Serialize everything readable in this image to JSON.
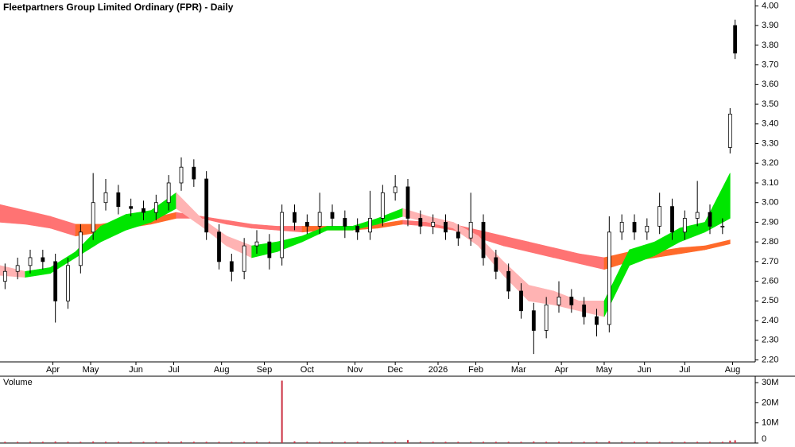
{
  "chart_data": [
    {
      "type": "candlestick",
      "title": "Fleetpartners Group Limited Ordinary (FPR) - Daily",
      "x": [
        2,
        7,
        12,
        17,
        22,
        27,
        32,
        37,
        42,
        47,
        52,
        57,
        62,
        67,
        72,
        77,
        82,
        87,
        92,
        97,
        102,
        107,
        112,
        117,
        122,
        127,
        132,
        137,
        142,
        147,
        152,
        157,
        162,
        167,
        172,
        177,
        182,
        187,
        192,
        197,
        202,
        207,
        212,
        217,
        222,
        227,
        232,
        237,
        242,
        247,
        252,
        257,
        262,
        267,
        272,
        277,
        282,
        287,
        290,
        292
      ],
      "open": [
        2.6,
        2.65,
        2.68,
        2.72,
        2.7,
        2.5,
        2.68,
        2.85,
        3.0,
        3.05,
        2.98,
        2.97,
        2.95,
        3.0,
        3.1,
        3.18,
        3.12,
        2.85,
        2.7,
        2.65,
        2.78,
        2.8,
        2.72,
        2.95,
        2.9,
        2.88,
        2.95,
        2.92,
        2.88,
        2.85,
        2.92,
        3.05,
        3.08,
        2.92,
        2.88,
        2.9,
        2.85,
        2.82,
        2.9,
        2.72,
        2.65,
        2.55,
        2.45,
        2.35,
        2.48,
        2.52,
        2.48,
        2.42,
        2.38,
        2.85,
        2.9,
        2.85,
        2.88,
        2.98,
        2.85,
        2.92,
        2.95,
        2.88,
        3.28,
        3.9
      ],
      "high": [
        2.69,
        2.72,
        2.76,
        2.76,
        2.74,
        2.72,
        2.89,
        3.15,
        3.12,
        3.09,
        3.02,
        3.01,
        3.04,
        3.14,
        3.23,
        3.22,
        3.16,
        2.89,
        2.74,
        2.82,
        2.86,
        2.84,
        2.99,
        2.99,
        2.94,
        3.05,
        2.99,
        2.96,
        2.92,
        3.06,
        3.09,
        3.14,
        3.12,
        2.96,
        2.94,
        2.94,
        2.89,
        3.05,
        2.94,
        2.76,
        2.69,
        2.59,
        2.49,
        2.52,
        2.6,
        2.56,
        2.52,
        2.46,
        2.93,
        2.94,
        2.94,
        2.92,
        3.05,
        3.02,
        2.96,
        3.11,
        2.99,
        2.92,
        3.48,
        3.93
      ],
      "low": [
        2.56,
        2.61,
        2.64,
        2.66,
        2.39,
        2.46,
        2.64,
        2.81,
        2.96,
        2.94,
        2.93,
        2.91,
        2.91,
        2.96,
        3.06,
        3.08,
        2.81,
        2.66,
        2.6,
        2.61,
        2.74,
        2.66,
        2.68,
        2.86,
        2.84,
        2.84,
        2.88,
        2.82,
        2.81,
        2.81,
        2.88,
        3.01,
        2.88,
        2.84,
        2.84,
        2.81,
        2.78,
        2.78,
        2.68,
        2.61,
        2.51,
        2.41,
        2.23,
        2.31,
        2.44,
        2.44,
        2.38,
        2.32,
        2.34,
        2.81,
        2.81,
        2.81,
        2.84,
        2.81,
        2.81,
        2.88,
        2.84,
        2.84,
        3.25,
        3.73
      ],
      "close": [
        2.65,
        2.68,
        2.72,
        2.7,
        2.5,
        2.68,
        2.85,
        3.0,
        3.05,
        2.98,
        2.97,
        2.95,
        3.0,
        3.1,
        3.18,
        3.12,
        2.85,
        2.7,
        2.65,
        2.78,
        2.8,
        2.72,
        2.95,
        2.9,
        2.88,
        2.95,
        2.92,
        2.88,
        2.85,
        2.92,
        3.05,
        3.08,
        2.92,
        2.88,
        2.9,
        2.85,
        2.82,
        2.9,
        2.72,
        2.65,
        2.55,
        2.45,
        2.35,
        2.48,
        2.52,
        2.48,
        2.42,
        2.38,
        2.85,
        2.9,
        2.85,
        2.88,
        2.98,
        2.85,
        2.92,
        2.95,
        2.88,
        2.88,
        3.45,
        3.76
      ],
      "up_color": "#ffffff",
      "down_color": "#000000",
      "bands": [
        {
          "x": [
            0,
            10,
            20,
            30,
            40,
            50,
            60,
            70,
            80,
            90,
            100,
            110,
            120,
            130,
            140,
            150,
            160,
            170,
            180,
            190,
            200,
            210,
            220,
            230,
            240,
            250,
            260,
            270,
            280,
            290
          ],
          "upper": [
            2.99,
            2.96,
            2.93,
            2.89,
            2.89,
            2.91,
            2.92,
            2.95,
            2.93,
            2.91,
            2.89,
            2.88,
            2.88,
            2.88,
            2.88,
            2.89,
            2.91,
            2.9,
            2.89,
            2.86,
            2.83,
            2.8,
            2.77,
            2.74,
            2.72,
            2.75,
            2.75,
            2.77,
            2.78,
            2.81
          ],
          "lower": [
            2.9,
            2.89,
            2.87,
            2.83,
            2.85,
            2.87,
            2.89,
            2.92,
            2.92,
            2.89,
            2.87,
            2.86,
            2.85,
            2.86,
            2.86,
            2.87,
            2.89,
            2.88,
            2.86,
            2.82,
            2.78,
            2.75,
            2.72,
            2.69,
            2.66,
            2.7,
            2.72,
            2.74,
            2.76,
            2.79
          ],
          "rising_color": "#ff6a2a",
          "falling_color": "#ff7373"
        },
        {
          "x": [
            0,
            10,
            20,
            30,
            40,
            50,
            60,
            70,
            80,
            90,
            100,
            110,
            120,
            130,
            140,
            150,
            160,
            170,
            180,
            190,
            200,
            210,
            220,
            230,
            240,
            250,
            260,
            270,
            280,
            290
          ],
          "upper": [
            2.68,
            2.65,
            2.67,
            2.75,
            2.88,
            2.94,
            2.96,
            3.05,
            2.92,
            2.83,
            2.78,
            2.8,
            2.83,
            2.88,
            2.88,
            2.92,
            2.97,
            2.93,
            2.9,
            2.83,
            2.7,
            2.58,
            2.55,
            2.5,
            2.5,
            2.76,
            2.8,
            2.87,
            2.9,
            3.15
          ],
          "lower": [
            2.63,
            2.62,
            2.64,
            2.72,
            2.8,
            2.86,
            2.9,
            2.97,
            2.88,
            2.78,
            2.72,
            2.75,
            2.8,
            2.86,
            2.86,
            2.89,
            2.93,
            2.9,
            2.87,
            2.78,
            2.63,
            2.5,
            2.48,
            2.45,
            2.42,
            2.68,
            2.73,
            2.8,
            2.85,
            2.92
          ],
          "rising_color": "#00e600",
          "falling_color": "#ffb3b3"
        }
      ],
      "xlim": [
        0,
        300
      ],
      "xticks": [
        {
          "value": 21,
          "label": "Apr"
        },
        {
          "value": 36,
          "label": "May"
        },
        {
          "value": 54,
          "label": "Jun"
        },
        {
          "value": 69,
          "label": "Jul"
        },
        {
          "value": 88,
          "label": "Aug"
        },
        {
          "value": 105,
          "label": "Sep"
        },
        {
          "value": 122,
          "label": "Oct"
        },
        {
          "value": 141,
          "label": "Nov"
        },
        {
          "value": 157,
          "label": "Dec"
        },
        {
          "value": 174,
          "label": "2026"
        },
        {
          "value": 189,
          "label": "Feb"
        },
        {
          "value": 206,
          "label": "Mar"
        },
        {
          "value": 223,
          "label": "Apr"
        },
        {
          "value": 240,
          "label": "May"
        },
        {
          "value": 256,
          "label": "Jun"
        },
        {
          "value": 272,
          "label": "Jul"
        },
        {
          "value": 291,
          "label": "Aug"
        }
      ],
      "ylim": [
        2.19,
        4.03
      ],
      "yticks": [
        {
          "value": 2.2,
          "label": "2.20"
        },
        {
          "value": 2.3,
          "label": "2.30"
        },
        {
          "value": 2.4,
          "label": "2.40"
        },
        {
          "value": 2.5,
          "label": "2.50"
        },
        {
          "value": 2.6,
          "label": "2.60"
        },
        {
          "value": 2.7,
          "label": "2.70"
        },
        {
          "value": 2.8,
          "label": "2.80"
        },
        {
          "value": 2.9,
          "label": "2.90"
        },
        {
          "value": 3.0,
          "label": "3.00"
        },
        {
          "value": 3.1,
          "label": "3.10"
        },
        {
          "value": 3.2,
          "label": "3.20"
        },
        {
          "value": 3.3,
          "label": "3.30"
        },
        {
          "value": 3.4,
          "label": "3.40"
        },
        {
          "value": 3.5,
          "label": "3.50"
        },
        {
          "value": 3.6,
          "label": "3.60"
        },
        {
          "value": 3.7,
          "label": "3.70"
        },
        {
          "value": 3.8,
          "label": "3.80"
        },
        {
          "value": 3.9,
          "label": "3.90"
        },
        {
          "value": 4.0,
          "label": "4.00"
        }
      ]
    },
    {
      "type": "bar",
      "title": "Volume",
      "title_color": "#6666aa",
      "color": "#cc3344",
      "x": [
        2,
        7,
        12,
        17,
        22,
        27,
        32,
        37,
        42,
        47,
        52,
        57,
        62,
        67,
        72,
        77,
        82,
        87,
        92,
        97,
        102,
        107,
        112,
        117,
        122,
        127,
        132,
        137,
        142,
        147,
        152,
        157,
        162,
        167,
        172,
        177,
        182,
        187,
        192,
        197,
        202,
        207,
        212,
        217,
        222,
        227,
        232,
        237,
        242,
        247,
        252,
        257,
        262,
        267,
        272,
        277,
        282,
        287,
        290,
        292
      ],
      "values": [
        600000,
        600000,
        600000,
        600000,
        700000,
        600000,
        600000,
        700000,
        600000,
        600000,
        600000,
        600000,
        600000,
        600000,
        700000,
        600000,
        600000,
        600000,
        600000,
        600000,
        600000,
        600000,
        31000000,
        800000,
        600000,
        600000,
        600000,
        600000,
        600000,
        600000,
        600000,
        600000,
        1500000,
        600000,
        600000,
        600000,
        600000,
        600000,
        600000,
        600000,
        600000,
        600000,
        700000,
        600000,
        600000,
        600000,
        600000,
        600000,
        900000,
        600000,
        600000,
        600000,
        600000,
        600000,
        600000,
        600000,
        600000,
        600000,
        1200000,
        1400000
      ],
      "xlim": [
        0,
        300
      ],
      "ylim": [
        0,
        32400000
      ],
      "yticks": [
        0,
        {
          "value": 10000000,
          "label": "10M"
        },
        {
          "value": 20000000,
          "label": "20M"
        },
        {
          "value": 30000000,
          "label": "30M"
        }
      ]
    }
  ]
}
